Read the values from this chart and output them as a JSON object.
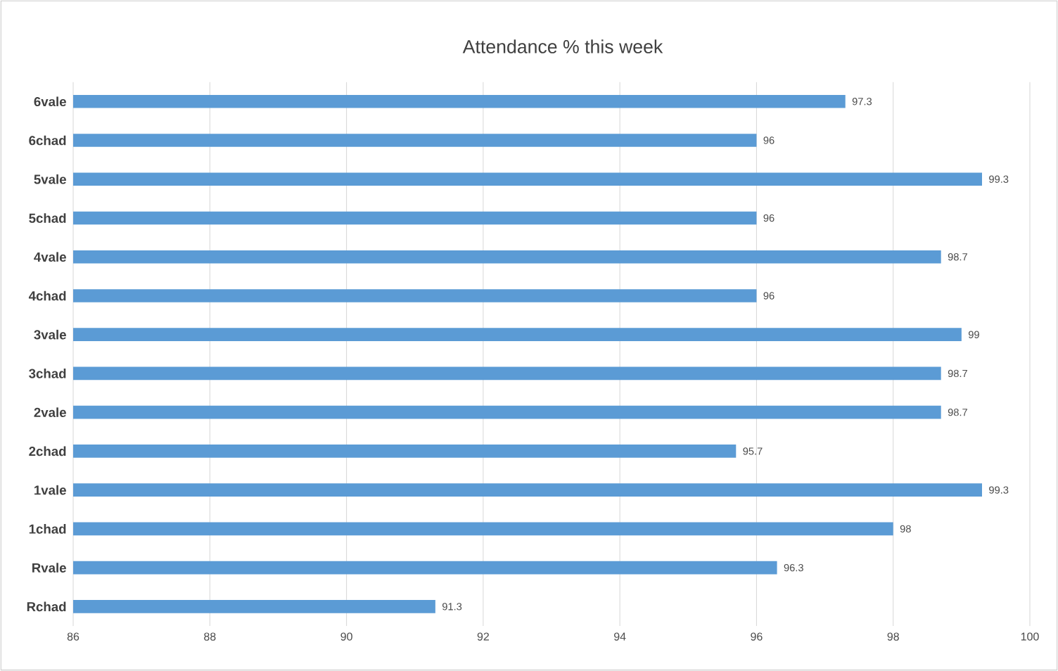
{
  "chart_data": {
    "type": "bar",
    "orientation": "horizontal",
    "title": "Attendance % this week",
    "categories": [
      "6vale",
      "6chad",
      "5vale",
      "5chad",
      "4vale",
      "4chad",
      "3vale",
      "3chad",
      "2vale",
      "2chad",
      "1vale",
      "1chad",
      "Rvale",
      "Rchad"
    ],
    "values": [
      97.3,
      96,
      99.3,
      96,
      98.7,
      96,
      99,
      98.7,
      98.7,
      95.7,
      99.3,
      98,
      96.3,
      91.3
    ],
    "color": "#5b9bd5",
    "xlim": [
      86,
      100
    ],
    "xticks": [
      86,
      88,
      90,
      92,
      94,
      96,
      98,
      100
    ],
    "grid": "x",
    "data_labels": true
  }
}
